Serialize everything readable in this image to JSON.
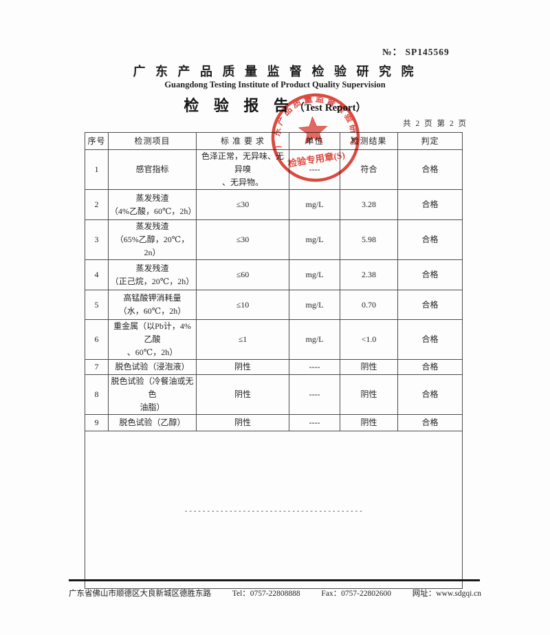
{
  "header": {
    "no_prefix": "№：",
    "no_value": "SP145569",
    "institute_cn": "广 东 产 品 质 量 监 督 检 验 研 究 院",
    "institute_en": "Guangdong Testing Institute of Product Quality Supervision",
    "title_cn": "检 验 报 告",
    "title_en": "（Test Report）",
    "page_info": "共 2 页 第 2 页"
  },
  "stamp": {
    "arc_text": "广东产品质量监督检验研究院",
    "bottom_text": "检验专用章(S)",
    "color": "#d93025"
  },
  "table": {
    "headers": [
      "序号",
      "检测项目",
      "标 准 要 求",
      "单位",
      "检测结果",
      "判定"
    ],
    "rows": [
      {
        "no": "1",
        "item": [
          "感官指标"
        ],
        "standard": [
          "色泽正常，无异味、无异嗅",
          "、无异物。"
        ],
        "unit": "----",
        "result": "符合",
        "verdict": "合格"
      },
      {
        "no": "2",
        "item": [
          "蒸发残渣",
          "（4%乙酸，60℃，2h）"
        ],
        "standard": [
          "≤30"
        ],
        "unit": "mg/L",
        "result": "3.28",
        "verdict": "合格"
      },
      {
        "no": "3",
        "item": [
          "蒸发残渣",
          "（65%乙醇，20℃，2n）"
        ],
        "standard": [
          "≤30"
        ],
        "unit": "mg/L",
        "result": "5.98",
        "verdict": "合格"
      },
      {
        "no": "4",
        "item": [
          "蒸发残渣",
          "（正己烷，20℃，2h）"
        ],
        "standard": [
          "≤60"
        ],
        "unit": "mg/L",
        "result": "2.38",
        "verdict": "合格"
      },
      {
        "no": "5",
        "item": [
          "高锰酸钾消耗量",
          "（水，60℃，2h）"
        ],
        "standard": [
          "≤10"
        ],
        "unit": "mg/L",
        "result": "0.70",
        "verdict": "合格"
      },
      {
        "no": "6",
        "item": [
          "重金属（以Pb计，4%乙酸",
          "、60℃，2h）"
        ],
        "standard": [
          "≤1"
        ],
        "unit": "mg/L",
        "result": "<1.0",
        "verdict": "合格"
      },
      {
        "no": "7",
        "item": [
          "脱色试验（浸泡液）"
        ],
        "standard": [
          "阴性"
        ],
        "unit": "----",
        "result": "阴性",
        "verdict": "合格"
      },
      {
        "no": "8",
        "item": [
          "脱色试验（冷餐油或无色",
          "油脂）"
        ],
        "standard": [
          "阴性"
        ],
        "unit": "----",
        "result": "阴性",
        "verdict": "合格"
      },
      {
        "no": "9",
        "item": [
          "脱色试验（乙醇）"
        ],
        "standard": [
          "阴性"
        ],
        "unit": "----",
        "result": "阴性",
        "verdict": "合格"
      }
    ],
    "separator_dashes": "----------------------------------------"
  },
  "footer": {
    "address": "广东省佛山市顺德区大良新城区德胜东路",
    "tel": "Tel：0757-22808888",
    "fax": "Fax：0757-22802600",
    "website": "网址：www.sdgqi.cn"
  }
}
